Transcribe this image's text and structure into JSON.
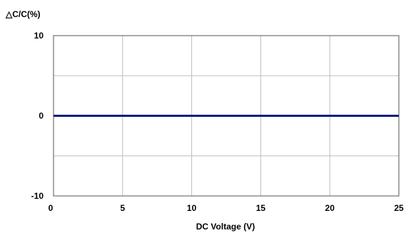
{
  "chart_data": {
    "type": "line",
    "title": "",
    "ylabel": "△C/C(%)",
    "xlabel": "DC Voltage (V)",
    "xlim": [
      0,
      25
    ],
    "ylim": [
      -10,
      10
    ],
    "x_ticks": [
      0,
      5,
      10,
      15,
      20,
      25
    ],
    "y_ticks_labeled": [
      -10,
      0,
      10
    ],
    "y_gridlines": [
      -10,
      -5,
      0,
      5,
      10
    ],
    "grid": true,
    "legend": "none",
    "series": [
      {
        "x": [
          0,
          5,
          10,
          15,
          20,
          25
        ],
        "values": [
          0,
          0,
          0,
          0,
          0,
          0
        ],
        "color": "#0d1f7a"
      }
    ]
  }
}
